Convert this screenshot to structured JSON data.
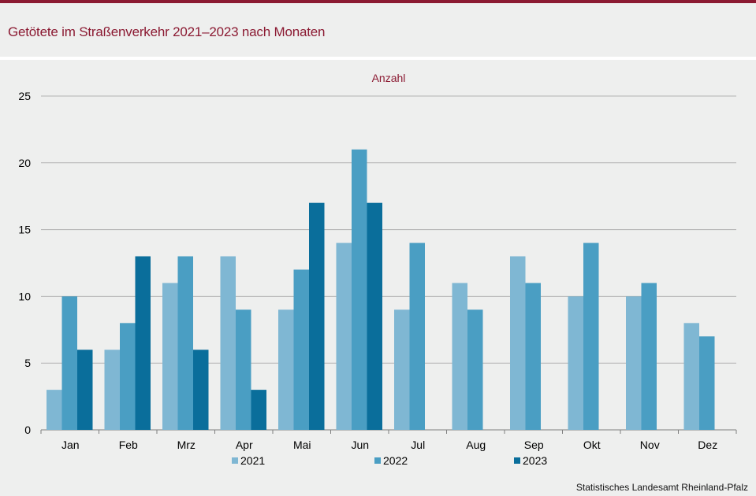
{
  "header": {
    "title": "Getötete im Straßenverkehr 2021–2023 nach Monaten"
  },
  "footer": {
    "source": "Statistisches Landesamt  Rheinland-Pfalz"
  },
  "chart_data": {
    "type": "bar",
    "ylabel": "Anzahl",
    "xlabel": "",
    "ylim": [
      0,
      25
    ],
    "yticks": [
      0,
      5,
      10,
      15,
      20,
      25
    ],
    "grid": true,
    "legend_position": "bottom",
    "categories": [
      "Jan",
      "Feb",
      "Mrz",
      "Apr",
      "Mai",
      "Jun",
      "Jul",
      "Aug",
      "Sep",
      "Okt",
      "Nov",
      "Dez"
    ],
    "series": [
      {
        "name": "2021",
        "color": "#7fb7d3",
        "values": [
          3,
          6,
          11,
          13,
          9,
          14,
          9,
          11,
          13,
          10,
          10,
          8
        ]
      },
      {
        "name": "2022",
        "color": "#4a9ec3",
        "values": [
          10,
          8,
          13,
          9,
          12,
          21,
          14,
          9,
          11,
          14,
          11,
          7
        ]
      },
      {
        "name": "2023",
        "color": "#0a6e9b",
        "values": [
          6,
          13,
          6,
          3,
          17,
          17,
          null,
          null,
          null,
          null,
          null,
          null
        ]
      }
    ]
  }
}
